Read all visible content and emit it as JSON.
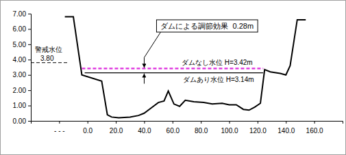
{
  "chart_data": {
    "type": "line",
    "xlim": [
      -40,
      180
    ],
    "ylim": [
      0,
      7
    ],
    "xticks": [
      {
        "value": -20,
        "label": "- - -"
      },
      {
        "value": 0,
        "label": "0.0"
      },
      {
        "value": 20,
        "label": "20.0"
      },
      {
        "value": 40,
        "label": "40.0"
      },
      {
        "value": 60,
        "label": "60.0"
      },
      {
        "value": 80,
        "label": "80.0"
      },
      {
        "value": 100,
        "label": "100.0"
      },
      {
        "value": 120,
        "label": "120.0"
      },
      {
        "value": 140,
        "label": "140.0"
      },
      {
        "value": 160,
        "label": "160.0"
      }
    ],
    "yticks": [
      {
        "value": 0,
        "label": "0.00"
      },
      {
        "value": 1,
        "label": "1.00"
      },
      {
        "value": 2,
        "label": "2.00"
      },
      {
        "value": 3,
        "label": "3.00"
      },
      {
        "value": 4,
        "label": "4.00"
      },
      {
        "value": 5,
        "label": "5.00"
      },
      {
        "value": 6,
        "label": "6.00"
      },
      {
        "value": 7,
        "label": "7.00"
      }
    ],
    "grid": false,
    "series": [
      {
        "color": "#000000",
        "line_style": "solid",
        "x": [
          -16,
          -10,
          -4,
          10,
          14,
          17,
          22,
          30,
          36,
          40,
          45,
          50,
          54,
          57,
          61,
          65,
          69,
          75,
          82,
          88,
          95,
          100,
          105,
          110,
          114,
          118,
          122,
          125,
          129,
          136,
          140,
          143,
          148,
          154
        ],
        "values": [
          6.8,
          6.8,
          3.0,
          2.6,
          0.4,
          0.25,
          0.2,
          0.25,
          0.35,
          0.5,
          0.85,
          1.2,
          1.3,
          1.95,
          1.1,
          0.95,
          1.35,
          1.25,
          1.2,
          1.1,
          1.15,
          1.05,
          1.05,
          0.75,
          0.7,
          0.9,
          1.15,
          3.35,
          3.2,
          3.1,
          3.0,
          3.6,
          6.6,
          6.6
        ]
      }
    ],
    "water_levels": [
      {
        "label": "ダムなし水位 H=3.42m",
        "value": 3.42,
        "x": [
          -4,
          124
        ],
        "color": "#e040e0",
        "line_style": "dashed"
      },
      {
        "label": "ダムあり水位 H=3.14m",
        "value": 3.14,
        "x": [
          -2,
          124
        ],
        "color": "#000000",
        "line_style": "solid"
      }
    ],
    "warning_level": {
      "label": "警戒水位",
      "value": 3.8,
      "value_label": "3.80",
      "x": [
        -40,
        -13
      ],
      "color": "#000000",
      "line_style": "dashed"
    },
    "effect_annotation": {
      "text": "ダムによる調節効果  0.28m",
      "x": 40
    }
  }
}
